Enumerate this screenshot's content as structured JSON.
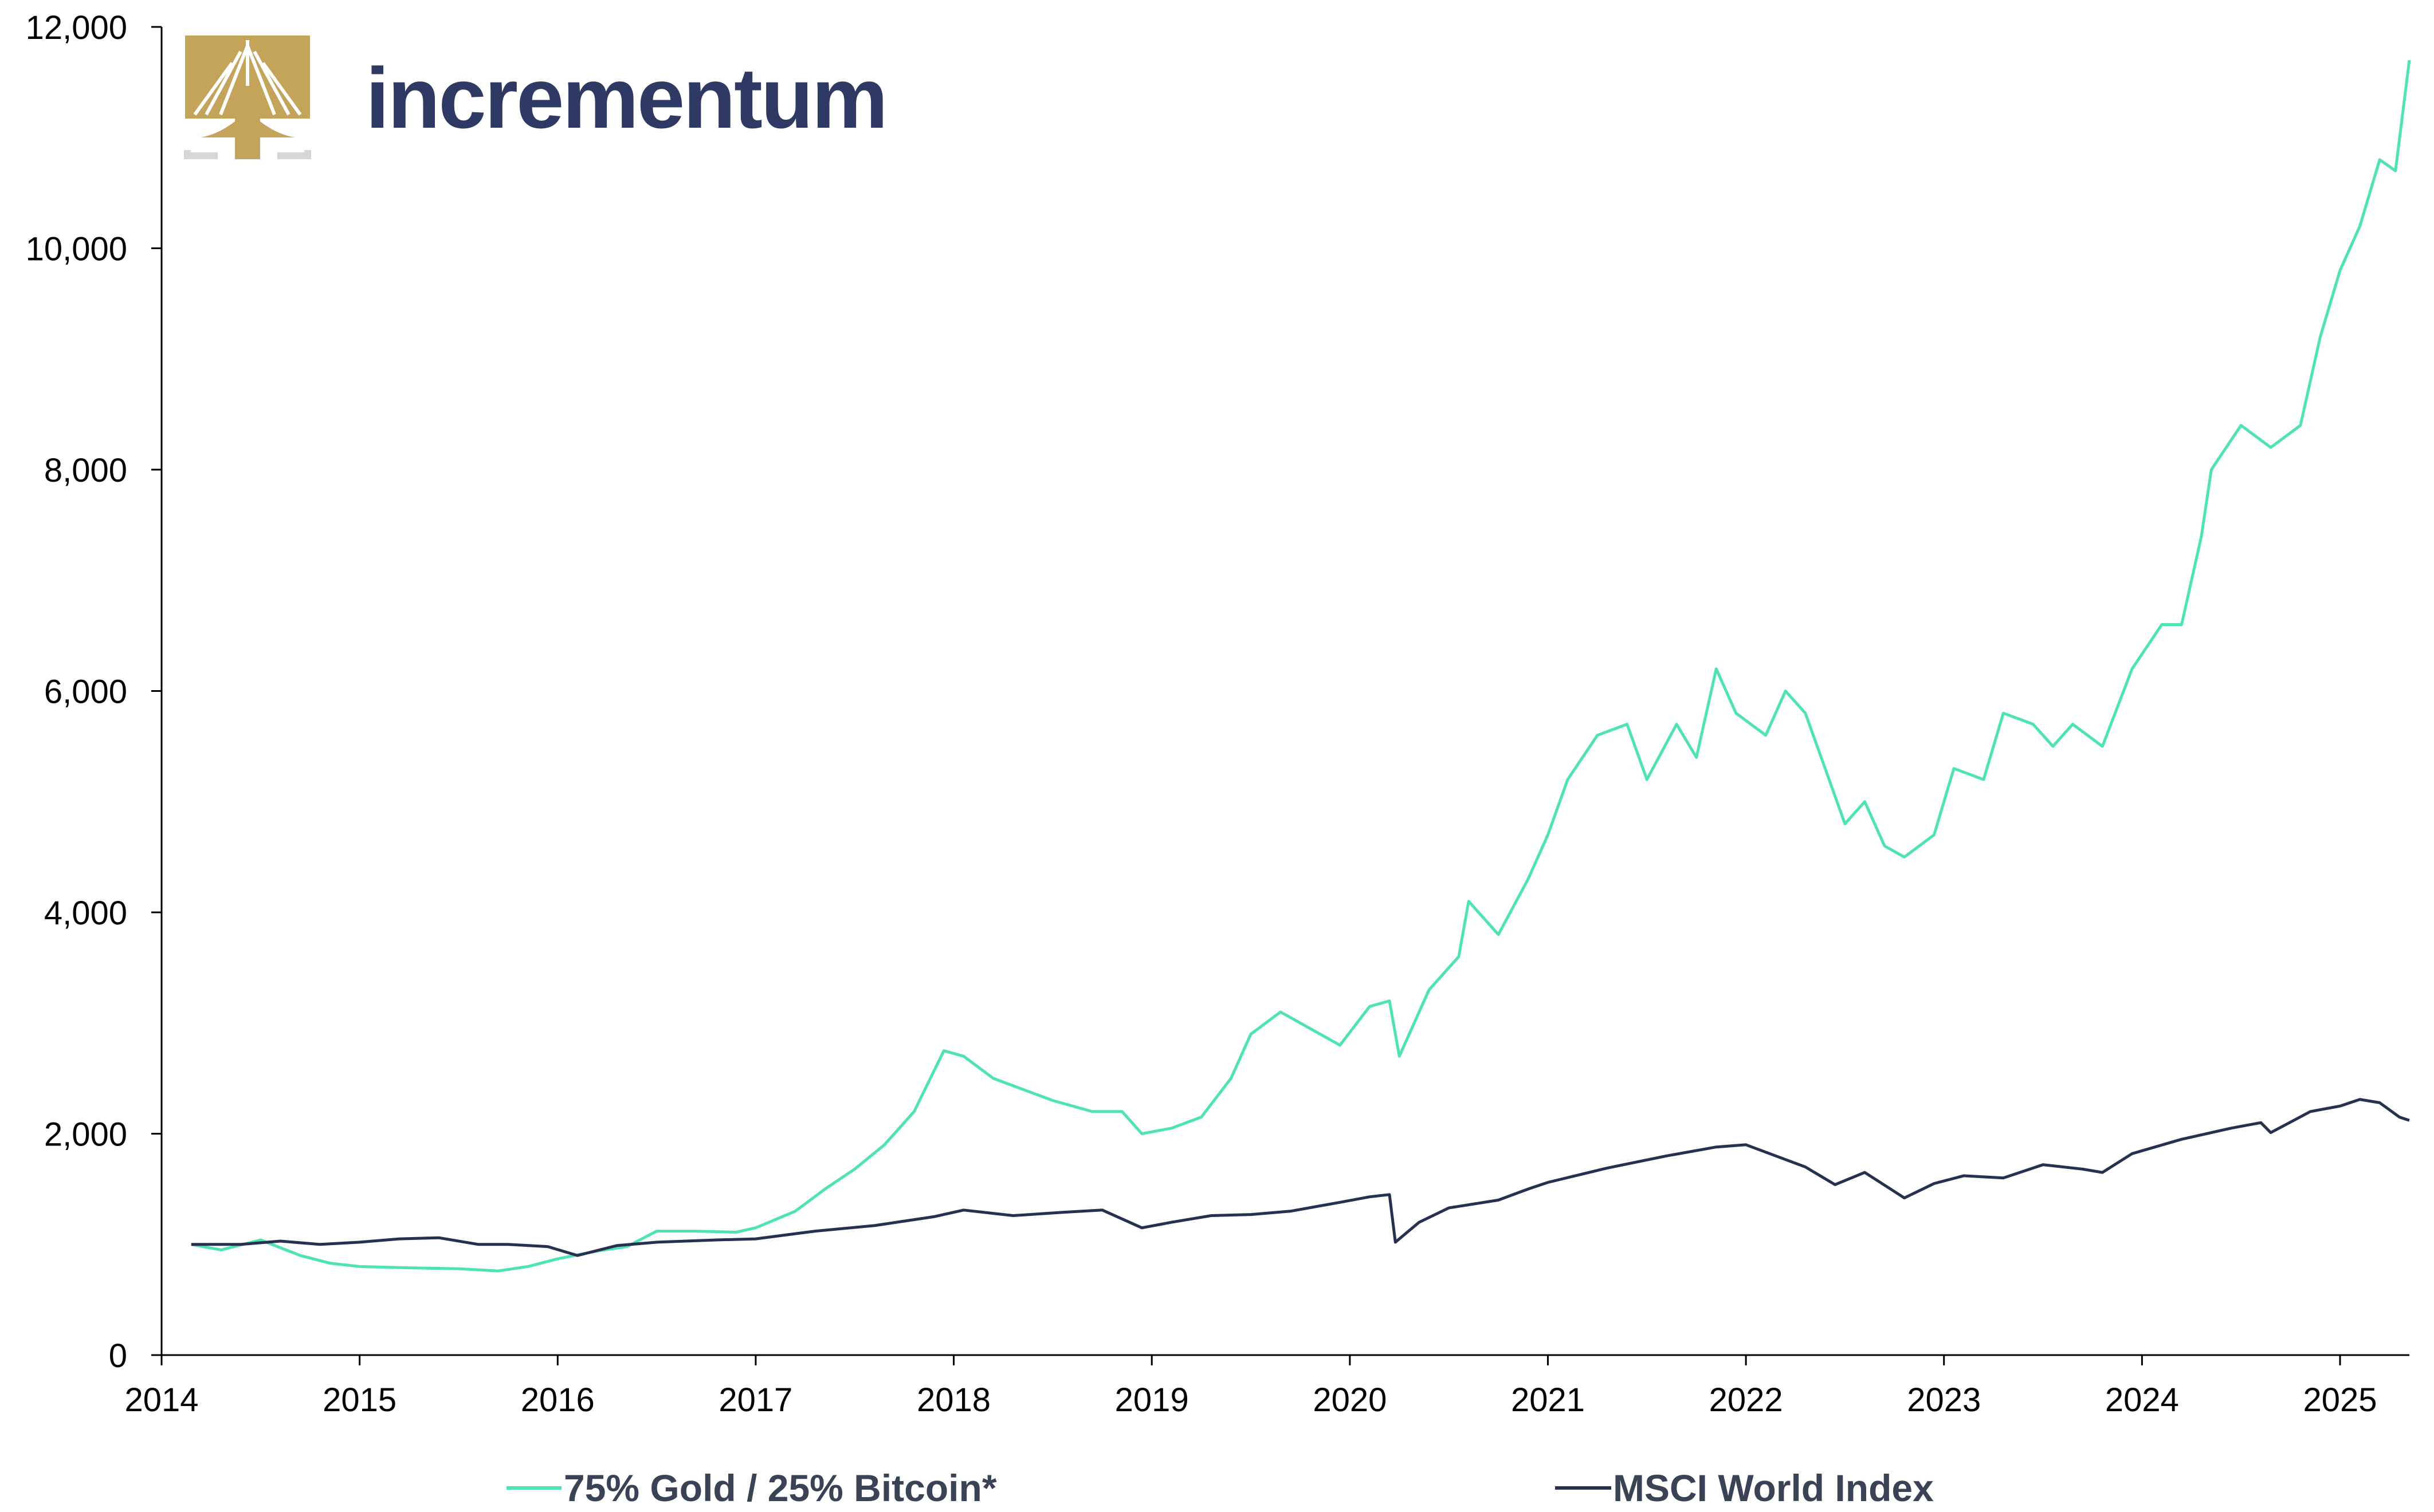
{
  "logo": {
    "text": "incrementum"
  },
  "colors": {
    "gold_bitcoin": "#4fe3b4",
    "msci": "#26314f",
    "logo_gold": "#c4a35a",
    "logo_gray": "#d6d6d6",
    "axis": "#000000"
  },
  "chart_data": {
    "type": "line",
    "title": "",
    "xlabel": "",
    "ylabel": "",
    "xlim": [
      2014.0,
      2025.35
    ],
    "ylim": [
      0,
      12000
    ],
    "x_ticks": [
      "2014",
      "2015",
      "2016",
      "2017",
      "2018",
      "2019",
      "2020",
      "2021",
      "2022",
      "2023",
      "2024",
      "2025"
    ],
    "y_ticks": [
      "0",
      "2,000",
      "4,000",
      "6,000",
      "8,000",
      "10,000",
      "12,000"
    ],
    "grid": false,
    "legend_position": "bottom",
    "series": [
      {
        "name": "75% Gold / 25% Bitcoin*",
        "points": [
          [
            2014.15,
            1000
          ],
          [
            2014.3,
            950
          ],
          [
            2014.5,
            1040
          ],
          [
            2014.7,
            900
          ],
          [
            2014.85,
            830
          ],
          [
            2015.0,
            800
          ],
          [
            2015.2,
            790
          ],
          [
            2015.5,
            780
          ],
          [
            2015.7,
            760
          ],
          [
            2015.85,
            800
          ],
          [
            2016.0,
            870
          ],
          [
            2016.2,
            940
          ],
          [
            2016.35,
            980
          ],
          [
            2016.5,
            1120
          ],
          [
            2016.7,
            1120
          ],
          [
            2016.9,
            1110
          ],
          [
            2017.0,
            1150
          ],
          [
            2017.2,
            1300
          ],
          [
            2017.35,
            1500
          ],
          [
            2017.5,
            1680
          ],
          [
            2017.65,
            1900
          ],
          [
            2017.8,
            2200
          ],
          [
            2017.95,
            2750
          ],
          [
            2018.05,
            2700
          ],
          [
            2018.2,
            2500
          ],
          [
            2018.35,
            2400
          ],
          [
            2018.5,
            2300
          ],
          [
            2018.7,
            2200
          ],
          [
            2018.85,
            2200
          ],
          [
            2018.95,
            2000
          ],
          [
            2019.1,
            2050
          ],
          [
            2019.25,
            2150
          ],
          [
            2019.4,
            2500
          ],
          [
            2019.5,
            2900
          ],
          [
            2019.65,
            3100
          ],
          [
            2019.8,
            2950
          ],
          [
            2019.95,
            2800
          ],
          [
            2020.1,
            3150
          ],
          [
            2020.2,
            3200
          ],
          [
            2020.25,
            2700
          ],
          [
            2020.4,
            3300
          ],
          [
            2020.55,
            3600
          ],
          [
            2020.6,
            4100
          ],
          [
            2020.75,
            3800
          ],
          [
            2020.9,
            4300
          ],
          [
            2021.0,
            4700
          ],
          [
            2021.1,
            5200
          ],
          [
            2021.25,
            5600
          ],
          [
            2021.4,
            5700
          ],
          [
            2021.5,
            5200
          ],
          [
            2021.65,
            5700
          ],
          [
            2021.75,
            5400
          ],
          [
            2021.85,
            6200
          ],
          [
            2021.95,
            5800
          ],
          [
            2022.1,
            5600
          ],
          [
            2022.2,
            6000
          ],
          [
            2022.3,
            5800
          ],
          [
            2022.4,
            5300
          ],
          [
            2022.5,
            4800
          ],
          [
            2022.6,
            5000
          ],
          [
            2022.7,
            4600
          ],
          [
            2022.8,
            4500
          ],
          [
            2022.95,
            4700
          ],
          [
            2023.05,
            5300
          ],
          [
            2023.2,
            5200
          ],
          [
            2023.3,
            5800
          ],
          [
            2023.45,
            5700
          ],
          [
            2023.55,
            5500
          ],
          [
            2023.65,
            5700
          ],
          [
            2023.8,
            5500
          ],
          [
            2023.95,
            6200
          ],
          [
            2024.1,
            6600
          ],
          [
            2024.2,
            6600
          ],
          [
            2024.3,
            7400
          ],
          [
            2024.35,
            8000
          ],
          [
            2024.5,
            8400
          ],
          [
            2024.65,
            8200
          ],
          [
            2024.8,
            8400
          ],
          [
            2024.9,
            9200
          ],
          [
            2025.0,
            9800
          ],
          [
            2025.1,
            10200
          ],
          [
            2025.2,
            10800
          ],
          [
            2025.28,
            10700
          ],
          [
            2025.35,
            11700
          ]
        ]
      },
      {
        "name": "MSCI World Index",
        "points": [
          [
            2014.15,
            1000
          ],
          [
            2014.4,
            1000
          ],
          [
            2014.6,
            1030
          ],
          [
            2014.8,
            1000
          ],
          [
            2015.0,
            1020
          ],
          [
            2015.2,
            1050
          ],
          [
            2015.4,
            1060
          ],
          [
            2015.6,
            1000
          ],
          [
            2015.75,
            1000
          ],
          [
            2015.95,
            980
          ],
          [
            2016.1,
            900
          ],
          [
            2016.3,
            990
          ],
          [
            2016.5,
            1020
          ],
          [
            2016.8,
            1040
          ],
          [
            2017.0,
            1050
          ],
          [
            2017.3,
            1120
          ],
          [
            2017.6,
            1170
          ],
          [
            2017.9,
            1250
          ],
          [
            2018.05,
            1310
          ],
          [
            2018.3,
            1260
          ],
          [
            2018.55,
            1290
          ],
          [
            2018.75,
            1310
          ],
          [
            2018.95,
            1150
          ],
          [
            2019.1,
            1200
          ],
          [
            2019.3,
            1260
          ],
          [
            2019.5,
            1270
          ],
          [
            2019.7,
            1300
          ],
          [
            2019.95,
            1380
          ],
          [
            2020.1,
            1430
          ],
          [
            2020.2,
            1450
          ],
          [
            2020.23,
            1020
          ],
          [
            2020.35,
            1200
          ],
          [
            2020.5,
            1330
          ],
          [
            2020.75,
            1400
          ],
          [
            2020.9,
            1500
          ],
          [
            2021.0,
            1560
          ],
          [
            2021.3,
            1690
          ],
          [
            2021.6,
            1800
          ],
          [
            2021.85,
            1880
          ],
          [
            2022.0,
            1900
          ],
          [
            2022.15,
            1800
          ],
          [
            2022.3,
            1700
          ],
          [
            2022.45,
            1540
          ],
          [
            2022.6,
            1650
          ],
          [
            2022.8,
            1420
          ],
          [
            2022.95,
            1550
          ],
          [
            2023.1,
            1620
          ],
          [
            2023.3,
            1600
          ],
          [
            2023.5,
            1720
          ],
          [
            2023.7,
            1680
          ],
          [
            2023.8,
            1650
          ],
          [
            2023.95,
            1820
          ],
          [
            2024.2,
            1950
          ],
          [
            2024.45,
            2050
          ],
          [
            2024.6,
            2100
          ],
          [
            2024.65,
            2010
          ],
          [
            2024.85,
            2200
          ],
          [
            2025.0,
            2250
          ],
          [
            2025.1,
            2310
          ],
          [
            2025.2,
            2280
          ],
          [
            2025.3,
            2150
          ],
          [
            2025.35,
            2120
          ]
        ]
      }
    ]
  }
}
